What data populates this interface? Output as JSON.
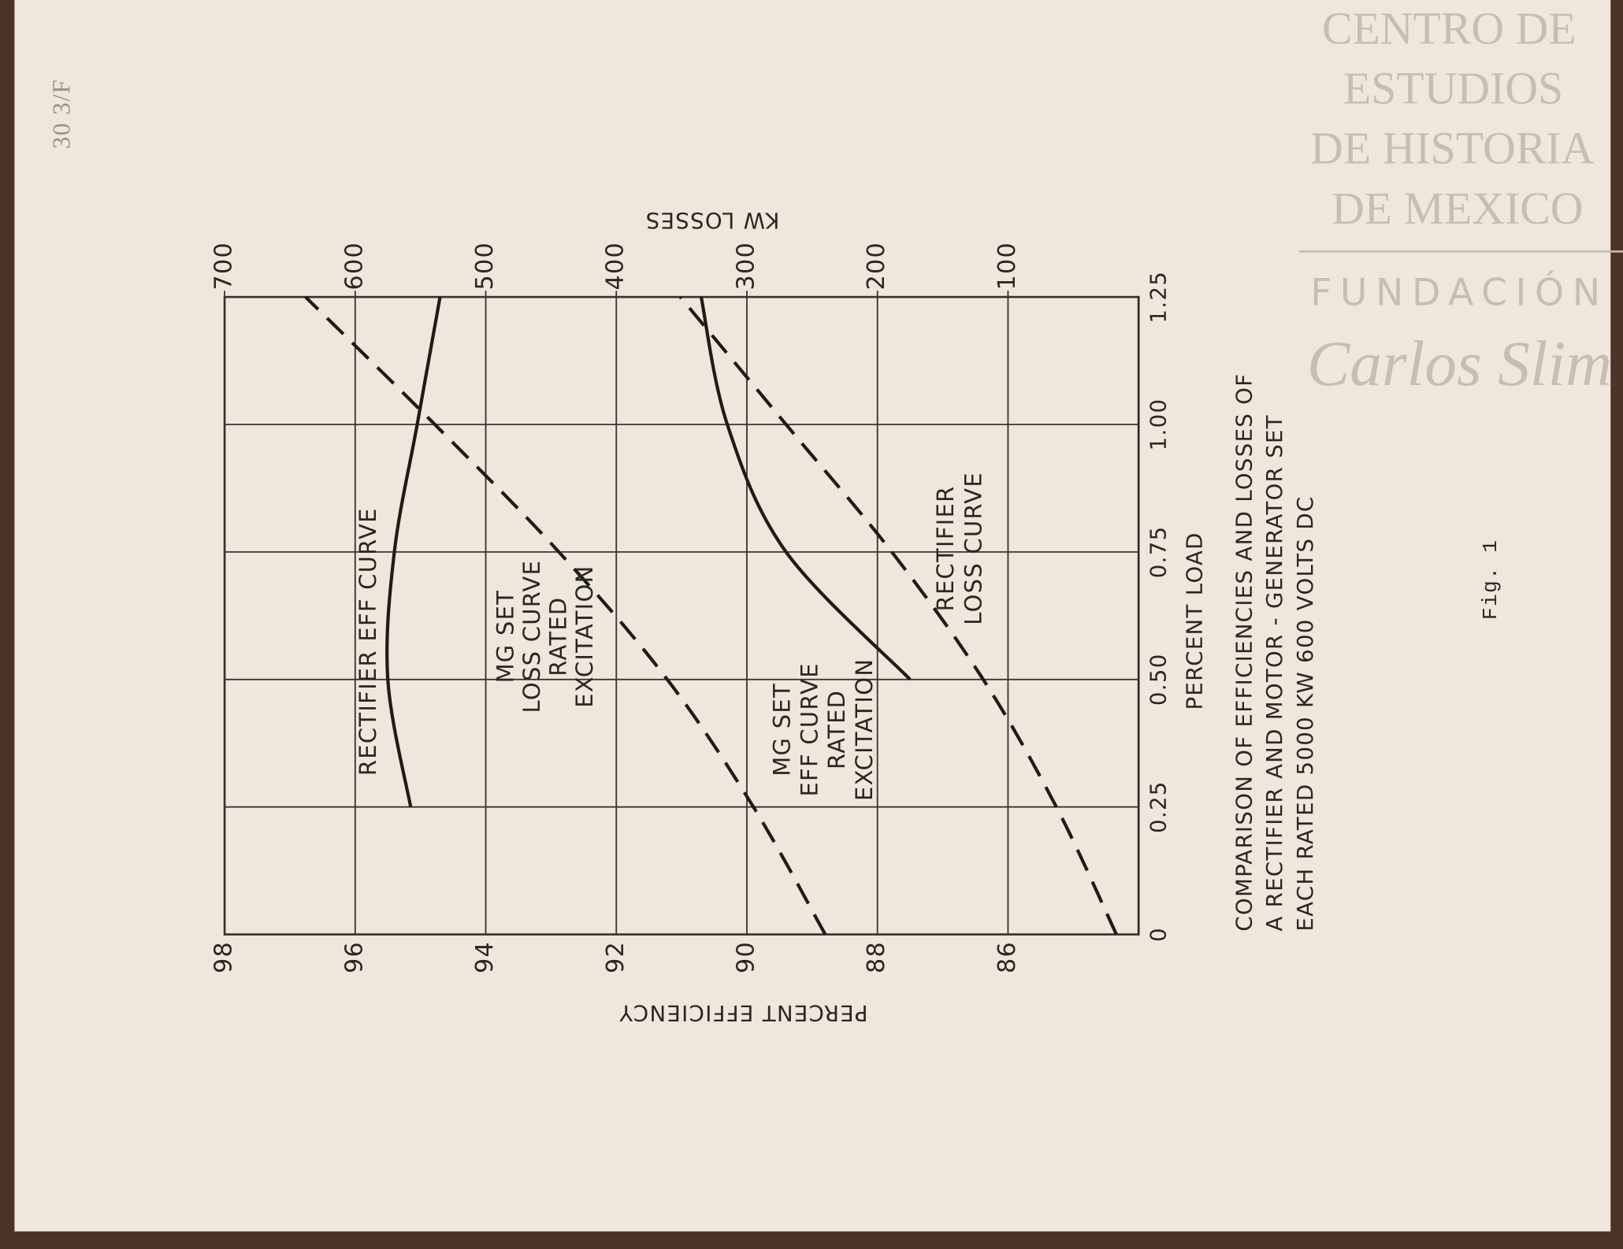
{
  "chart_data": {
    "type": "line",
    "title": [
      "COMPARISON OF EFFICIENCIES AND LOSSES OF",
      "A RECTIFIER AND MOTOR - GENERATOR SET",
      "EACH RATED 5000 KW 600 VOLTS DC"
    ],
    "caption": "Fig. 1",
    "x_label": "PERCENT LOAD",
    "y_label": "PERCENT EFFICIENCY",
    "y2_label": "KW LOSSES",
    "x": [
      0,
      0.25,
      0.5,
      0.75,
      1.0,
      1.25
    ],
    "xlim": [
      0,
      1.25
    ],
    "xticks": [
      0,
      0.25,
      {
        "value": 0.5,
        "label": "0.50"
      },
      0.75,
      {
        "value": 1.0,
        "label": "1.00"
      },
      1.25
    ],
    "ylim": [
      84,
      98
    ],
    "yticks": [
      86,
      88,
      90,
      92,
      94,
      96,
      98
    ],
    "y2lim": [
      0,
      700
    ],
    "y2ticks": [
      100,
      200,
      300,
      400,
      500,
      600,
      700
    ],
    "grid": true,
    "series": [
      {
        "name": [
          "RECTIFIER EFF CURVE"
        ],
        "color": "#1e1b18",
        "style": "solid",
        "values": [
          null,
          95.15,
          95.5,
          95.4,
          95.05,
          94.7
        ]
      },
      {
        "name": [
          "MG SET",
          "LOSS CURVE",
          "RATED",
          "EXCITATION"
        ],
        "color": "#1e1b18",
        "style": "dashed",
        "axis": "y2",
        "values": [
          240,
          295,
          361,
          444,
          539,
          638
        ]
      },
      {
        "name": [
          "MG SET",
          "EFF CURVE",
          "RATED",
          "EXCITATION"
        ],
        "color": "#1e1b18",
        "style": "solid",
        "values": [
          null,
          null,
          87.5,
          89.4,
          90.3,
          90.7
        ]
      },
      {
        "name": [
          "RECTIFIER",
          "LOSS CURVE"
        ],
        "color": "#1e1b18",
        "style": "dashed",
        "axis": "y2",
        "values": [
          17,
          63,
          119,
          189,
          270,
          351
        ]
      }
    ]
  },
  "handwritten_note": "30 3/F",
  "watermark": {
    "lines": [
      "CENTRO DE",
      "ESTUDIOS",
      "DE HISTORIA",
      "DE MEXICO"
    ],
    "foundation": "FUNDACIÓN",
    "signature": "Carlos Slim"
  }
}
